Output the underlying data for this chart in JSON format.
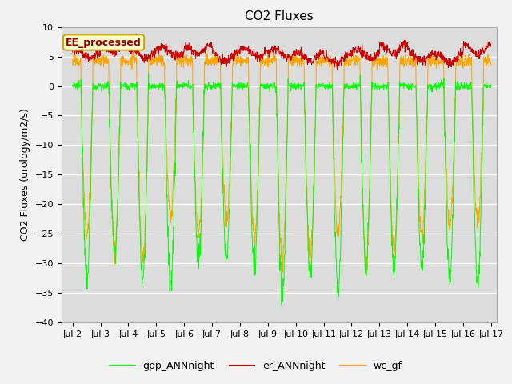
{
  "title": "CO2 Fluxes",
  "ylabel": "CO2 Fluxes (urology/m2/s)",
  "ylim": [
    -40,
    10
  ],
  "yticks": [
    -40,
    -35,
    -30,
    -25,
    -20,
    -15,
    -10,
    -5,
    0,
    5,
    10
  ],
  "xlim_start": 1.6,
  "xlim_end": 17.2,
  "xtick_labels": [
    "Jul 2",
    "Jul 3",
    "Jul 4",
    "Jul 5",
    "Jul 6",
    "Jul 7",
    "Jul 8",
    "Jul 9",
    "Jul 10",
    "Jul 11",
    "Jul 12",
    "Jul 13",
    "Jul 14",
    "Jul 15",
    "Jul 16",
    "Jul 17"
  ],
  "xtick_positions": [
    2,
    3,
    4,
    5,
    6,
    7,
    8,
    9,
    10,
    11,
    12,
    13,
    14,
    15,
    16,
    17
  ],
  "gpp_color": "#00FF00",
  "er_color": "#CC0000",
  "wc_color": "#FFA500",
  "legend_entries": [
    "gpp_ANNnight",
    "er_ANNnight",
    "wc_gf"
  ],
  "annotation_text": "EE_processed",
  "annotation_bg": "#FFFFCC",
  "annotation_border": "#CCAA00",
  "axes_bg": "#DCDCDC",
  "n_days": 15,
  "pts_per_day": 96
}
